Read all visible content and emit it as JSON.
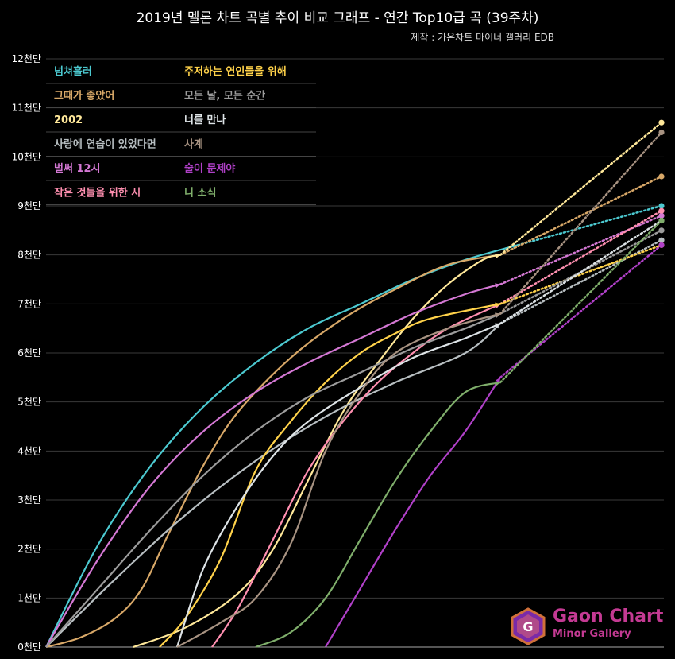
{
  "title": "2019년 멜론 차트 곡별 추이 비교 그래프 - 연간 Top10급 곡 (39주차)",
  "subtitle": "제작 : 가온차트 마이너 갤러리 EDB",
  "logo": {
    "main": "Gaon Chart",
    "sub": "Minor Gallery",
    "badge": "G"
  },
  "chart_data": {
    "type": "line",
    "y_unit_label": "천만",
    "ylim": [
      0,
      12
    ],
    "yticks": [
      "0천만",
      "1천만",
      "2천만",
      "3천만",
      "4천만",
      "5천만",
      "6천만",
      "7천만",
      "8천만",
      "9천만",
      "10천만",
      "11천만",
      "12천만"
    ],
    "x_range": [
      0,
      39
    ],
    "projection_x": 52,
    "series": [
      {
        "name": "넘쳐흘러",
        "color": "#4cc9d0",
        "legend_col": 0,
        "legend_row": 0,
        "points": [
          [
            0,
            0
          ],
          [
            3,
            2.1
          ],
          [
            6,
            3.7
          ],
          [
            9,
            4.9
          ],
          [
            12,
            5.8
          ],
          [
            15,
            6.5
          ],
          [
            18,
            7.0
          ],
          [
            21,
            7.5
          ],
          [
            24,
            7.9
          ],
          [
            27,
            8.2
          ]
        ],
        "projected": 9.0
      },
      {
        "name": "그때가 좋았어",
        "color": "#d8a868",
        "legend_col": 0,
        "legend_row": 1,
        "points": [
          [
            0,
            0
          ],
          [
            2,
            0.2
          ],
          [
            4,
            0.6
          ],
          [
            5.5,
            1.2
          ],
          [
            7,
            2.3
          ],
          [
            9,
            3.7
          ],
          [
            11,
            4.8
          ],
          [
            14,
            5.9
          ],
          [
            17,
            6.7
          ],
          [
            20,
            7.3
          ],
          [
            23,
            7.8
          ],
          [
            26,
            8.0
          ]
        ],
        "projected": 9.6
      },
      {
        "name": "2002",
        "color": "#ffe89a",
        "legend_col": 0,
        "legend_row": 2,
        "points": [
          [
            5,
            0
          ],
          [
            8,
            0.4
          ],
          [
            11,
            1.1
          ],
          [
            13,
            2.0
          ],
          [
            15,
            3.4
          ],
          [
            17,
            4.8
          ],
          [
            19,
            5.8
          ],
          [
            21,
            6.7
          ],
          [
            23,
            7.4
          ],
          [
            25,
            7.9
          ],
          [
            26,
            8.0
          ]
        ],
        "projected": 10.7
      },
      {
        "name": "사랑에 연습이 있었다면",
        "color": "#b7bec1",
        "legend_col": 0,
        "legend_row": 3,
        "points": [
          [
            0,
            0
          ],
          [
            4,
            1.4
          ],
          [
            8,
            2.7
          ],
          [
            12,
            3.8
          ],
          [
            16,
            4.7
          ],
          [
            20,
            5.4
          ],
          [
            24,
            6.0
          ],
          [
            26,
            6.6
          ]
        ],
        "projected": 8.3
      },
      {
        "name": "벌써 12시",
        "color": "#d478d4",
        "legend_col": 0,
        "legend_row": 4,
        "points": [
          [
            0,
            0
          ],
          [
            3,
            1.8
          ],
          [
            6,
            3.3
          ],
          [
            9,
            4.4
          ],
          [
            12,
            5.2
          ],
          [
            15,
            5.8
          ],
          [
            18,
            6.3
          ],
          [
            21,
            6.8
          ],
          [
            24,
            7.2
          ],
          [
            26,
            7.4
          ]
        ],
        "projected": 8.8
      },
      {
        "name": "작은 것들을 위한 시",
        "color": "#ff8fb0",
        "legend_col": 0,
        "legend_row": 5,
        "points": [
          [
            9.5,
            0
          ],
          [
            11,
            0.8
          ],
          [
            13,
            2.2
          ],
          [
            15,
            3.6
          ],
          [
            17,
            4.6
          ],
          [
            19,
            5.4
          ],
          [
            21,
            6.0
          ],
          [
            23,
            6.5
          ],
          [
            26,
            7.0
          ]
        ],
        "projected": 8.9
      },
      {
        "name": "주저하는 연인들을 위해",
        "color": "#ffd24a",
        "legend_col": 1,
        "legend_row": 0,
        "points": [
          [
            6.5,
            0
          ],
          [
            8,
            0.6
          ],
          [
            10,
            1.8
          ],
          [
            12,
            3.6
          ],
          [
            14,
            4.6
          ],
          [
            16,
            5.4
          ],
          [
            18,
            6.0
          ],
          [
            20,
            6.4
          ],
          [
            22,
            6.7
          ],
          [
            26,
            7.0
          ]
        ],
        "projected": 8.2
      },
      {
        "name": "모든 날, 모든 순간",
        "color": "#9c9c9c",
        "legend_col": 1,
        "legend_row": 1,
        "points": [
          [
            0,
            0
          ],
          [
            3,
            1.2
          ],
          [
            6,
            2.4
          ],
          [
            9,
            3.5
          ],
          [
            12,
            4.4
          ],
          [
            15,
            5.1
          ],
          [
            18,
            5.6
          ],
          [
            21,
            6.1
          ],
          [
            24,
            6.5
          ],
          [
            26,
            6.8
          ]
        ],
        "projected": 8.5
      },
      {
        "name": "너를 만나",
        "color": "#dde3e6",
        "legend_col": 1,
        "legend_row": 2,
        "points": [
          [
            7.5,
            0
          ],
          [
            9,
            1.6
          ],
          [
            11,
            2.9
          ],
          [
            13,
            3.9
          ],
          [
            15,
            4.6
          ],
          [
            18,
            5.3
          ],
          [
            21,
            5.9
          ],
          [
            24,
            6.3
          ],
          [
            26,
            6.6
          ]
        ],
        "projected": 8.7
      },
      {
        "name": "사계",
        "color": "#a89382",
        "legend_col": 1,
        "legend_row": 3,
        "points": [
          [
            7.5,
            0
          ],
          [
            10,
            0.5
          ],
          [
            12,
            1.0
          ],
          [
            14,
            2.1
          ],
          [
            16,
            4.0
          ],
          [
            18,
            5.2
          ],
          [
            20,
            6.0
          ],
          [
            23,
            6.5
          ],
          [
            26,
            6.8
          ]
        ],
        "projected": 10.5
      },
      {
        "name": "술이 문제야",
        "color": "#b040c8",
        "legend_col": 1,
        "legend_row": 4,
        "points": [
          [
            16,
            0
          ],
          [
            18,
            1.2
          ],
          [
            20,
            2.4
          ],
          [
            22,
            3.5
          ],
          [
            24,
            4.4
          ],
          [
            26,
            5.5
          ]
        ],
        "projected": 8.2
      },
      {
        "name": "니 소식",
        "color": "#7fae6b",
        "legend_col": 1,
        "legend_row": 5,
        "points": [
          [
            12,
            0
          ],
          [
            14,
            0.3
          ],
          [
            16,
            1.0
          ],
          [
            18,
            2.2
          ],
          [
            20,
            3.4
          ],
          [
            22,
            4.4
          ],
          [
            24,
            5.2
          ],
          [
            26,
            5.4
          ]
        ],
        "projected": 8.7
      }
    ]
  }
}
